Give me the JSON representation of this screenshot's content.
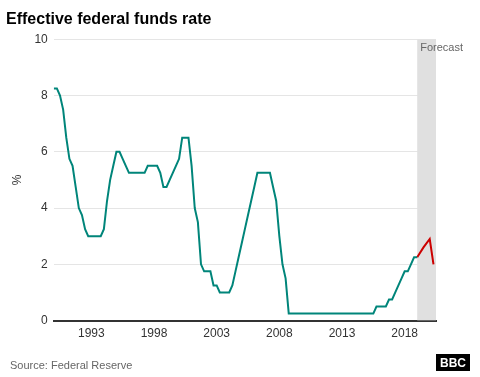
{
  "chart_data": {
    "type": "line",
    "title": "Effective federal funds rate",
    "y_label": "%",
    "source": "Source: Federal Reserve",
    "credit": "BBC",
    "series": [
      {
        "color": "#00857a",
        "x": [
          1990.0,
          1990.25,
          1990.5,
          1990.75,
          1991.0,
          1991.25,
          1991.5,
          1991.75,
          1992.0,
          1992.25,
          1992.5,
          1992.75,
          1993.0,
          1993.25,
          1993.5,
          1993.75,
          1994.0,
          1994.25,
          1994.5,
          1994.75,
          1995.0,
          1995.25,
          1995.5,
          1995.75,
          1996.0,
          1996.25,
          1996.5,
          1996.75,
          1997.0,
          1997.25,
          1997.5,
          1997.75,
          1998.0,
          1998.25,
          1998.5,
          1998.75,
          1999.0,
          1999.25,
          1999.5,
          1999.75,
          2000.0,
          2000.25,
          2000.5,
          2000.75,
          2001.0,
          2001.25,
          2001.5,
          2001.75,
          2002.0,
          2002.25,
          2002.5,
          2002.75,
          2003.0,
          2003.25,
          2003.5,
          2003.75,
          2004.0,
          2004.25,
          2004.5,
          2004.75,
          2005.0,
          2005.25,
          2005.5,
          2005.75,
          2006.0,
          2006.25,
          2006.5,
          2006.75,
          2007.0,
          2007.25,
          2007.5,
          2007.75,
          2008.0,
          2008.25,
          2008.5,
          2008.75,
          2009.0,
          2009.25,
          2009.5,
          2009.75,
          2010.0,
          2010.25,
          2010.5,
          2010.75,
          2011.0,
          2011.25,
          2011.5,
          2011.75,
          2012.0,
          2012.25,
          2012.5,
          2012.75,
          2013.0,
          2013.25,
          2013.5,
          2013.75,
          2014.0,
          2014.25,
          2014.5,
          2014.75,
          2015.0,
          2015.25,
          2015.5,
          2015.75,
          2016.0,
          2016.25,
          2016.5,
          2016.75,
          2017.0,
          2017.25,
          2017.5,
          2017.75,
          2018.0,
          2018.25,
          2018.5,
          2018.75,
          2019.0
        ],
        "values": [
          8.25,
          8.25,
          8.0,
          7.5,
          6.5,
          5.75,
          5.5,
          4.75,
          4.0,
          3.75,
          3.25,
          3.0,
          3.0,
          3.0,
          3.0,
          3.0,
          3.25,
          4.25,
          5.0,
          5.5,
          6.0,
          6.0,
          5.75,
          5.5,
          5.25,
          5.25,
          5.25,
          5.25,
          5.25,
          5.25,
          5.5,
          5.5,
          5.5,
          5.5,
          5.25,
          4.75,
          4.75,
          5.0,
          5.25,
          5.5,
          5.75,
          6.5,
          6.5,
          6.5,
          5.5,
          4.0,
          3.5,
          2.0,
          1.75,
          1.75,
          1.75,
          1.25,
          1.25,
          1.0,
          1.0,
          1.0,
          1.0,
          1.25,
          1.75,
          2.25,
          2.75,
          3.25,
          3.75,
          4.25,
          4.75,
          5.25,
          5.25,
          5.25,
          5.25,
          5.25,
          4.75,
          4.25,
          3.0,
          2.0,
          1.5,
          0.25,
          0.25,
          0.25,
          0.25,
          0.25,
          0.25,
          0.25,
          0.25,
          0.25,
          0.25,
          0.25,
          0.25,
          0.25,
          0.25,
          0.25,
          0.25,
          0.25,
          0.25,
          0.25,
          0.25,
          0.25,
          0.25,
          0.25,
          0.25,
          0.25,
          0.25,
          0.25,
          0.25,
          0.5,
          0.5,
          0.5,
          0.5,
          0.75,
          0.75,
          1.0,
          1.25,
          1.5,
          1.75,
          1.75,
          2.0,
          2.25,
          2.25
        ]
      },
      {
        "color": "#cc0000",
        "x": [
          2019.0,
          2019.5,
          2020.0,
          2020.3
        ],
        "values": [
          2.25,
          2.6,
          2.9,
          2.0
        ]
      }
    ],
    "shaded_region": {
      "label": "Forecast",
      "from": 2019.0,
      "to": 2020.5,
      "color": "#e0e0e0"
    },
    "xlim": [
      1990.0,
      2020.5
    ],
    "xticks": [
      1993,
      1998,
      2003,
      2008,
      2013,
      2018
    ],
    "ylim": [
      0,
      10
    ],
    "yticks": [
      0,
      2,
      4,
      6,
      8,
      10
    ],
    "grid": "y"
  }
}
